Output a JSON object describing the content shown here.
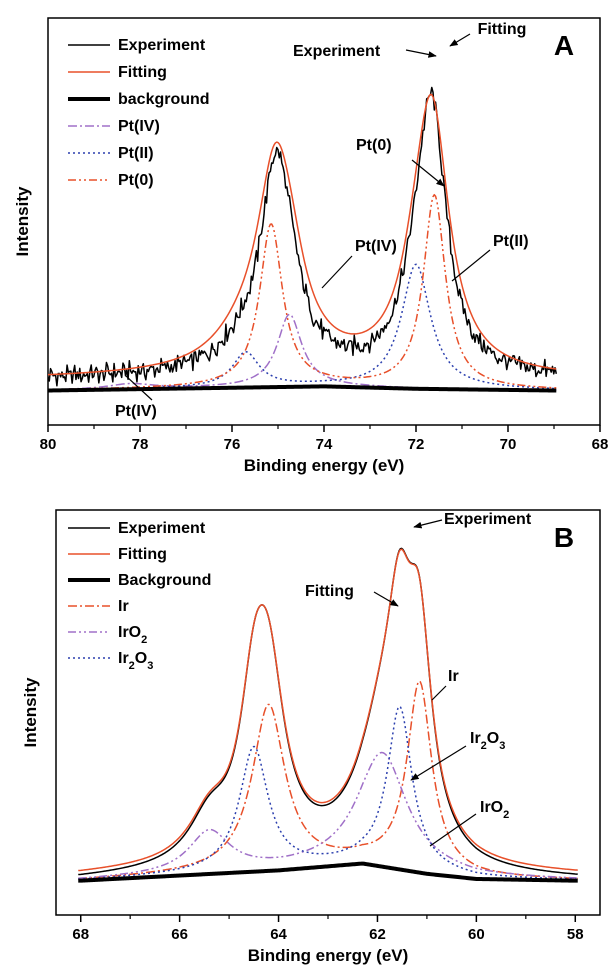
{
  "chart_data": [
    {
      "type": "line",
      "panel_label": "A",
      "xlabel": "Binding energy (eV)",
      "ylabel": "Intensity",
      "xlim": [
        80,
        68
      ],
      "x_reversed": true,
      "xticks": [
        80,
        78,
        76,
        74,
        72,
        70,
        68
      ],
      "y_tick_labels": false,
      "ylim": [
        -0.1,
        1.08
      ],
      "legend_position": "top-left",
      "colors": {
        "Experiment": "#000000",
        "Fitting": "#e8502a",
        "background": "#000000",
        "Pt(IV)": "#a070c8",
        "Pt(II)": "#2b3fae",
        "Pt(0)": "#e8502a"
      },
      "series": [
        {
          "name": "Experiment",
          "style": "solid",
          "peaks": [
            [
              75.05,
              0.57,
              0.4
            ],
            [
              71.65,
              0.73,
              0.38
            ],
            [
              74.7,
              0.1,
              0.35
            ],
            [
              72.0,
              0.14,
              0.4
            ],
            [
              75.8,
              0.05,
              0.6
            ]
          ],
          "noise": 0.024,
          "base": 0.035
        },
        {
          "name": "Fitting",
          "style": "solid",
          "peaks": [
            [
              75.05,
              0.57,
              0.5
            ],
            [
              71.65,
              0.72,
              0.45
            ],
            [
              74.7,
              0.1,
              0.4
            ],
            [
              72.0,
              0.13,
              0.45
            ],
            [
              75.8,
              0.06,
              0.8
            ]
          ],
          "base": 0.035
        },
        {
          "name": "background",
          "style": "thick",
          "values_at": [
            [
              80,
              0.0
            ],
            [
              76,
              0.008
            ],
            [
              74,
              0.012
            ],
            [
              72,
              0.005
            ],
            [
              69,
              0.0
            ]
          ]
        },
        {
          "name": "Pt(IV)",
          "style": "dashdot",
          "peaks": [
            [
              74.75,
              0.21,
              0.32
            ],
            [
              78.2,
              0.015,
              0.6
            ]
          ]
        },
        {
          "name": "Pt(II)",
          "style": "dotted",
          "peaks": [
            [
              75.7,
              0.1,
              0.35
            ],
            [
              72.0,
              0.36,
              0.38
            ]
          ]
        },
        {
          "name": "Pt(0)",
          "style": "dashdotdot",
          "peaks": [
            [
              75.15,
              0.47,
              0.3
            ],
            [
              71.6,
              0.56,
              0.29
            ]
          ]
        }
      ],
      "legend": [
        "Experiment",
        "Fitting",
        "background",
        "Pt(IV)",
        "Pt(II)",
        "Pt(0)"
      ],
      "annotations": [
        {
          "text": "Experiment"
        },
        {
          "text": "Fitting"
        },
        {
          "text": "Pt(0)"
        },
        {
          "text": "Pt(IV)"
        },
        {
          "text": "Pt(II)"
        },
        {
          "text": "Pt(IV)"
        }
      ]
    },
    {
      "type": "line",
      "panel_label": "B",
      "xlabel": "Binding energy (eV)",
      "ylabel": "Intensity",
      "xlim": [
        68.5,
        57.5
      ],
      "x_reversed": true,
      "xticks": [
        68,
        66,
        64,
        62,
        60,
        58
      ],
      "y_tick_labels": false,
      "ylim": [
        -0.1,
        1.08
      ],
      "legend_position": "top-left",
      "colors": {
        "Experiment": "#000000",
        "Fitting": "#e8502a",
        "Background": "#000000",
        "Ir": "#e8502a",
        "IrO2": "#a070c8",
        "Ir2O3": "#2b3fae"
      },
      "series": [
        {
          "name": "Experiment",
          "style": "solid"
        },
        {
          "name": "Fitting",
          "style": "solid"
        },
        {
          "name": "Background",
          "style": "thick",
          "values_at": [
            [
              68,
              0.0
            ],
            [
              64,
              0.03
            ],
            [
              62.3,
              0.05
            ],
            [
              61,
              0.02
            ],
            [
              60,
              0.005
            ],
            [
              58,
              0.0
            ]
          ]
        },
        {
          "name": "Ir",
          "style": "dashdot",
          "peaks": [
            [
              64.2,
              0.48,
              0.4
            ],
            [
              61.15,
              0.55,
              0.3
            ]
          ]
        },
        {
          "name": "IrO2",
          "style": "dashdotdot",
          "peaks": [
            [
              65.4,
              0.12,
              0.5
            ],
            [
              61.9,
              0.33,
              0.6
            ]
          ]
        },
        {
          "name": "Ir2O3",
          "style": "dotted",
          "peaks": [
            [
              64.5,
              0.36,
              0.35
            ],
            [
              61.55,
              0.47,
              0.3
            ]
          ]
        }
      ],
      "legend": [
        "Experiment",
        "Fitting",
        "Background",
        "Ir",
        "IrO2",
        "Ir2O3"
      ],
      "annotations": [
        {
          "text": "Experiment"
        },
        {
          "text": "Fitting"
        },
        {
          "text": "Ir"
        },
        {
          "text": "Ir2O3"
        },
        {
          "text": "IrO2"
        }
      ]
    }
  ]
}
